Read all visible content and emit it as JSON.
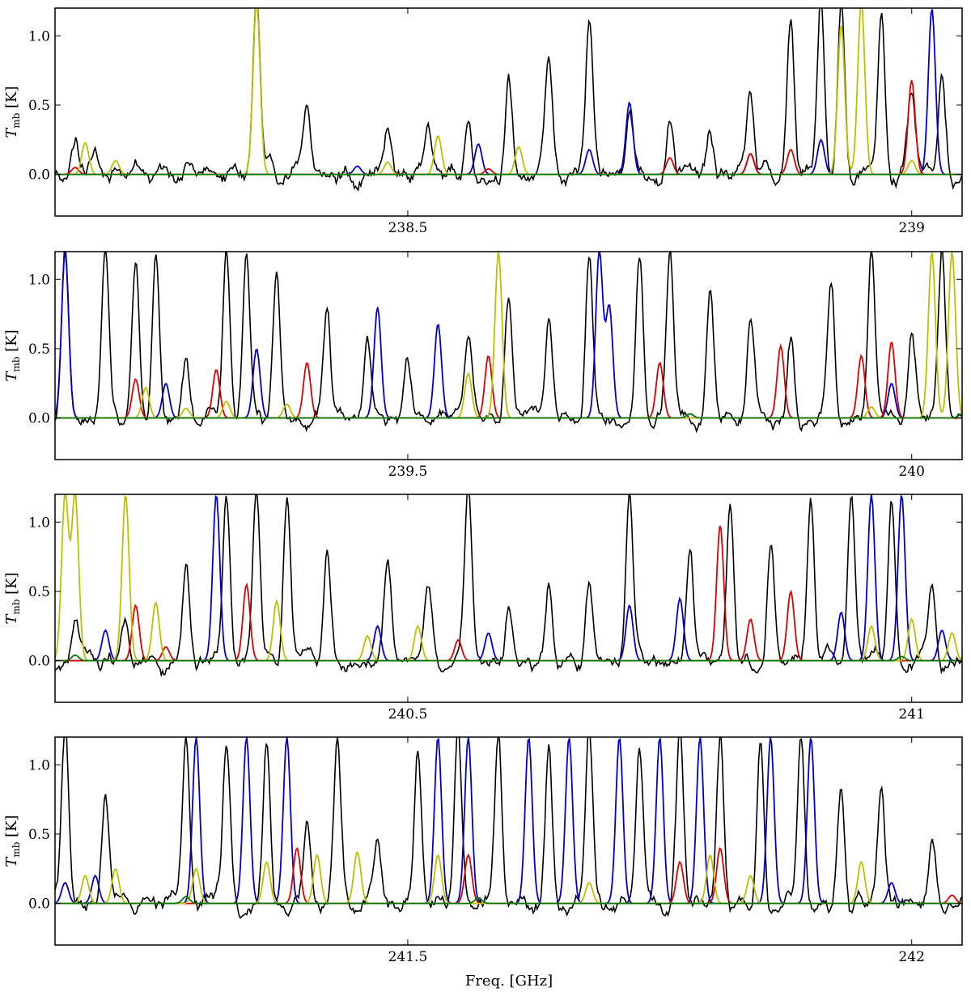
{
  "figure": {
    "xlabel": "Freq. [GHz]",
    "ylabel_main": "T",
    "ylabel_sub": "mb",
    "ylabel_unit": "[K]"
  },
  "series_colors": {
    "observed": "#000000",
    "blue_model": "#0000cc",
    "red_model": "#dd0000",
    "yellow_model": "#bfbf00",
    "green_model": "#007700"
  },
  "chart_data": [
    {
      "type": "line",
      "panel": 1,
      "xlim": [
        238.15,
        239.05
      ],
      "ylim": [
        -0.3,
        1.2
      ],
      "yticks": [
        0.0,
        0.5,
        1.0
      ],
      "ytick_labels": [
        "0.0",
        "0.5",
        "1.0"
      ],
      "xticks": [
        238.5,
        239.0
      ],
      "xtick_labels": [
        "238.5",
        "239"
      ],
      "ylabel": "T_mb [K]",
      "grid": false,
      "series": [
        {
          "color": "#000000",
          "baseline": 0.0,
          "noise": 0.09,
          "peaks": [
            [
              238.17,
              0.22
            ],
            [
              238.19,
              0.18
            ],
            [
              238.23,
              0.15
            ],
            [
              238.28,
              0.12
            ],
            [
              238.35,
              1.25
            ],
            [
              238.4,
              0.45
            ],
            [
              238.48,
              0.32
            ],
            [
              238.52,
              0.48
            ],
            [
              238.56,
              0.38
            ],
            [
              238.6,
              0.62
            ],
            [
              238.64,
              0.82
            ],
            [
              238.68,
              1.05
            ],
            [
              238.72,
              0.55
            ],
            [
              238.76,
              0.42
            ],
            [
              238.8,
              0.26
            ],
            [
              238.84,
              0.62
            ],
            [
              238.88,
              1.08
            ],
            [
              238.91,
              1.25
            ],
            [
              238.93,
              1.25
            ],
            [
              238.97,
              1.2
            ],
            [
              239.0,
              0.55
            ],
            [
              239.03,
              0.65
            ]
          ]
        },
        {
          "color": "#0000cc",
          "baseline": 0.0,
          "peaks": [
            [
              238.45,
              0.06
            ],
            [
              238.57,
              0.22
            ],
            [
              238.68,
              0.18
            ],
            [
              238.72,
              0.52
            ],
            [
              238.84,
              0.15
            ],
            [
              238.91,
              0.25
            ],
            [
              239.02,
              1.2
            ]
          ]
        },
        {
          "color": "#dd0000",
          "baseline": 0.0,
          "peaks": [
            [
              238.17,
              0.05
            ],
            [
              238.58,
              0.04
            ],
            [
              238.76,
              0.12
            ],
            [
              238.84,
              0.15
            ],
            [
              238.88,
              0.18
            ],
            [
              239.0,
              0.68
            ]
          ]
        },
        {
          "color": "#bfbf00",
          "baseline": 0.0,
          "peaks": [
            [
              238.18,
              0.23
            ],
            [
              238.21,
              0.1
            ],
            [
              238.35,
              1.25
            ],
            [
              238.48,
              0.09
            ],
            [
              238.53,
              0.28
            ],
            [
              238.61,
              0.2
            ],
            [
              238.93,
              1.08
            ],
            [
              238.95,
              1.25
            ],
            [
              239.0,
              0.1
            ]
          ]
        },
        {
          "color": "#007700",
          "baseline": 0.0,
          "peaks": []
        }
      ]
    },
    {
      "type": "line",
      "panel": 2,
      "xlim": [
        239.15,
        240.05
      ],
      "ylim": [
        -0.3,
        1.2
      ],
      "yticks": [
        0.0,
        0.5,
        1.0
      ],
      "ytick_labels": [
        "0.0",
        "0.5",
        "1.0"
      ],
      "xticks": [
        239.5,
        240.0
      ],
      "xtick_labels": [
        "239.5",
        "240"
      ],
      "ylabel": "T_mb [K]",
      "grid": false,
      "series": [
        {
          "color": "#000000",
          "baseline": 0.0,
          "noise": 0.08,
          "peaks": [
            [
              239.16,
              1.2
            ],
            [
              239.2,
              1.2
            ],
            [
              239.23,
              1.2
            ],
            [
              239.25,
              1.2
            ],
            [
              239.28,
              0.45
            ],
            [
              239.32,
              1.2
            ],
            [
              239.34,
              1.2
            ],
            [
              239.37,
              1.1
            ],
            [
              239.42,
              0.82
            ],
            [
              239.46,
              0.6
            ],
            [
              239.5,
              0.4
            ],
            [
              239.56,
              0.55
            ],
            [
              239.6,
              0.85
            ],
            [
              239.64,
              0.75
            ],
            [
              239.68,
              1.2
            ],
            [
              239.73,
              1.2
            ],
            [
              239.76,
              1.2
            ],
            [
              239.8,
              0.85
            ],
            [
              239.84,
              0.75
            ],
            [
              239.88,
              0.62
            ],
            [
              239.92,
              0.95
            ],
            [
              239.96,
              1.2
            ],
            [
              240.0,
              0.6
            ],
            [
              240.03,
              1.2
            ]
          ]
        },
        {
          "color": "#0000cc",
          "baseline": 0.0,
          "peaks": [
            [
              239.16,
              1.2
            ],
            [
              239.26,
              0.25
            ],
            [
              239.35,
              0.5
            ],
            [
              239.47,
              0.8
            ],
            [
              239.53,
              0.68
            ],
            [
              239.69,
              1.2
            ],
            [
              239.7,
              0.8
            ],
            [
              239.98,
              0.25
            ]
          ]
        },
        {
          "color": "#dd0000",
          "baseline": 0.0,
          "peaks": [
            [
              239.23,
              0.28
            ],
            [
              239.31,
              0.35
            ],
            [
              239.4,
              0.4
            ],
            [
              239.58,
              0.45
            ],
            [
              239.75,
              0.4
            ],
            [
              239.87,
              0.52
            ],
            [
              239.95,
              0.45
            ],
            [
              239.98,
              0.55
            ]
          ]
        },
        {
          "color": "#bfbf00",
          "baseline": 0.0,
          "peaks": [
            [
              239.24,
              0.22
            ],
            [
              239.28,
              0.07
            ],
            [
              239.32,
              0.12
            ],
            [
              239.38,
              0.1
            ],
            [
              239.56,
              0.32
            ],
            [
              239.59,
              1.2
            ],
            [
              239.96,
              0.08
            ],
            [
              240.02,
              1.2
            ],
            [
              240.04,
              1.2
            ]
          ]
        },
        {
          "color": "#007700",
          "baseline": 0.0,
          "peaks": [
            [
              239.78,
              0.03
            ],
            [
              240.05,
              0.03
            ]
          ]
        }
      ]
    },
    {
      "type": "line",
      "panel": 3,
      "xlim": [
        240.15,
        241.05
      ],
      "ylim": [
        -0.3,
        1.2
      ],
      "yticks": [
        0.0,
        0.5,
        1.0
      ],
      "ytick_labels": [
        "0.0",
        "0.5",
        "1.0"
      ],
      "xticks": [
        240.5,
        241.0
      ],
      "xtick_labels": [
        "240.5",
        "241"
      ],
      "ylabel": "T_mb [K]",
      "grid": false,
      "series": [
        {
          "color": "#000000",
          "baseline": 0.0,
          "noise": 0.08,
          "peaks": [
            [
              240.17,
              0.3
            ],
            [
              240.22,
              0.35
            ],
            [
              240.28,
              0.65
            ],
            [
              240.32,
              1.2
            ],
            [
              240.35,
              1.2
            ],
            [
              240.38,
              1.2
            ],
            [
              240.42,
              0.8
            ],
            [
              240.48,
              0.7
            ],
            [
              240.52,
              0.55
            ],
            [
              240.56,
              1.2
            ],
            [
              240.6,
              0.4
            ],
            [
              240.64,
              0.55
            ],
            [
              240.68,
              0.55
            ],
            [
              240.72,
              1.2
            ],
            [
              240.78,
              0.8
            ],
            [
              240.82,
              1.2
            ],
            [
              240.86,
              0.9
            ],
            [
              240.9,
              1.2
            ],
            [
              240.94,
              1.2
            ],
            [
              240.98,
              1.2
            ],
            [
              241.02,
              0.6
            ]
          ]
        },
        {
          "color": "#0000cc",
          "baseline": 0.0,
          "peaks": [
            [
              240.2,
              0.22
            ],
            [
              240.31,
              1.2
            ],
            [
              240.47,
              0.25
            ],
            [
              240.58,
              0.2
            ],
            [
              240.72,
              0.4
            ],
            [
              240.77,
              0.45
            ],
            [
              240.93,
              0.35
            ],
            [
              240.96,
              1.2
            ],
            [
              240.99,
              1.2
            ],
            [
              241.03,
              0.22
            ]
          ]
        },
        {
          "color": "#dd0000",
          "baseline": 0.0,
          "peaks": [
            [
              240.23,
              0.4
            ],
            [
              240.26,
              0.1
            ],
            [
              240.34,
              0.55
            ],
            [
              240.55,
              0.15
            ],
            [
              240.81,
              0.98
            ],
            [
              240.84,
              0.3
            ],
            [
              240.88,
              0.5
            ]
          ]
        },
        {
          "color": "#bfbf00",
          "baseline": 0.0,
          "peaks": [
            [
              240.16,
              1.2
            ],
            [
              240.17,
              1.2
            ],
            [
              240.22,
              1.2
            ],
            [
              240.25,
              0.42
            ],
            [
              240.37,
              0.43
            ],
            [
              240.46,
              0.18
            ],
            [
              240.51,
              0.25
            ],
            [
              240.96,
              0.25
            ],
            [
              241.0,
              0.3
            ],
            [
              241.04,
              0.2
            ]
          ]
        },
        {
          "color": "#007700",
          "baseline": 0.0,
          "peaks": [
            [
              240.17,
              0.04
            ],
            [
              240.99,
              0.03
            ]
          ]
        }
      ]
    },
    {
      "type": "line",
      "panel": 4,
      "xlim": [
        241.15,
        242.05
      ],
      "ylim": [
        -0.3,
        1.2
      ],
      "yticks": [
        0.0,
        0.5,
        1.0
      ],
      "ytick_labels": [
        "0.0",
        "0.5",
        "1.0"
      ],
      "xticks": [
        241.5,
        242.0
      ],
      "xtick_labels": [
        "241.5",
        "242"
      ],
      "ylabel": "T_mb [K]",
      "grid": false,
      "series": [
        {
          "color": "#000000",
          "baseline": 0.0,
          "noise": 0.09,
          "peaks": [
            [
              241.16,
              1.2
            ],
            [
              241.2,
              0.85
            ],
            [
              241.28,
              1.2
            ],
            [
              241.32,
              1.2
            ],
            [
              241.36,
              1.2
            ],
            [
              241.4,
              0.55
            ],
            [
              241.43,
              1.2
            ],
            [
              241.47,
              0.45
            ],
            [
              241.51,
              1.2
            ],
            [
              241.55,
              1.2
            ],
            [
              241.59,
              1.2
            ],
            [
              241.64,
              1.2
            ],
            [
              241.68,
              1.2
            ],
            [
              241.73,
              1.2
            ],
            [
              241.77,
              1.2
            ],
            [
              241.81,
              1.2
            ],
            [
              241.85,
              1.2
            ],
            [
              241.89,
              1.2
            ],
            [
              241.93,
              0.8
            ],
            [
              241.97,
              0.85
            ],
            [
              242.02,
              0.5
            ]
          ]
        },
        {
          "color": "#0000cc",
          "baseline": 0.0,
          "peaks": [
            [
              241.16,
              0.15
            ],
            [
              241.19,
              0.2
            ],
            [
              241.29,
              1.2
            ],
            [
              241.34,
              1.2
            ],
            [
              241.38,
              1.2
            ],
            [
              241.53,
              1.2
            ],
            [
              241.56,
              1.2
            ],
            [
              241.62,
              1.2
            ],
            [
              241.66,
              1.2
            ],
            [
              241.71,
              1.2
            ],
            [
              241.75,
              1.2
            ],
            [
              241.79,
              1.2
            ],
            [
              241.86,
              1.2
            ],
            [
              241.9,
              1.2
            ],
            [
              241.98,
              0.15
            ]
          ]
        },
        {
          "color": "#dd0000",
          "baseline": 0.0,
          "peaks": [
            [
              241.39,
              0.4
            ],
            [
              241.56,
              0.35
            ],
            [
              241.77,
              0.3
            ],
            [
              241.81,
              0.4
            ],
            [
              242.04,
              0.06
            ]
          ]
        },
        {
          "color": "#bfbf00",
          "baseline": 0.0,
          "peaks": [
            [
              241.18,
              0.2
            ],
            [
              241.21,
              0.25
            ],
            [
              241.29,
              0.25
            ],
            [
              241.36,
              0.3
            ],
            [
              241.41,
              0.35
            ],
            [
              241.45,
              0.37
            ],
            [
              241.53,
              0.35
            ],
            [
              241.68,
              0.15
            ],
            [
              241.8,
              0.35
            ],
            [
              241.84,
              0.2
            ],
            [
              241.95,
              0.3
            ]
          ]
        },
        {
          "color": "#007700",
          "baseline": 0.0,
          "peaks": [
            [
              241.28,
              0.05
            ],
            [
              241.57,
              0.04
            ]
          ]
        }
      ]
    }
  ]
}
